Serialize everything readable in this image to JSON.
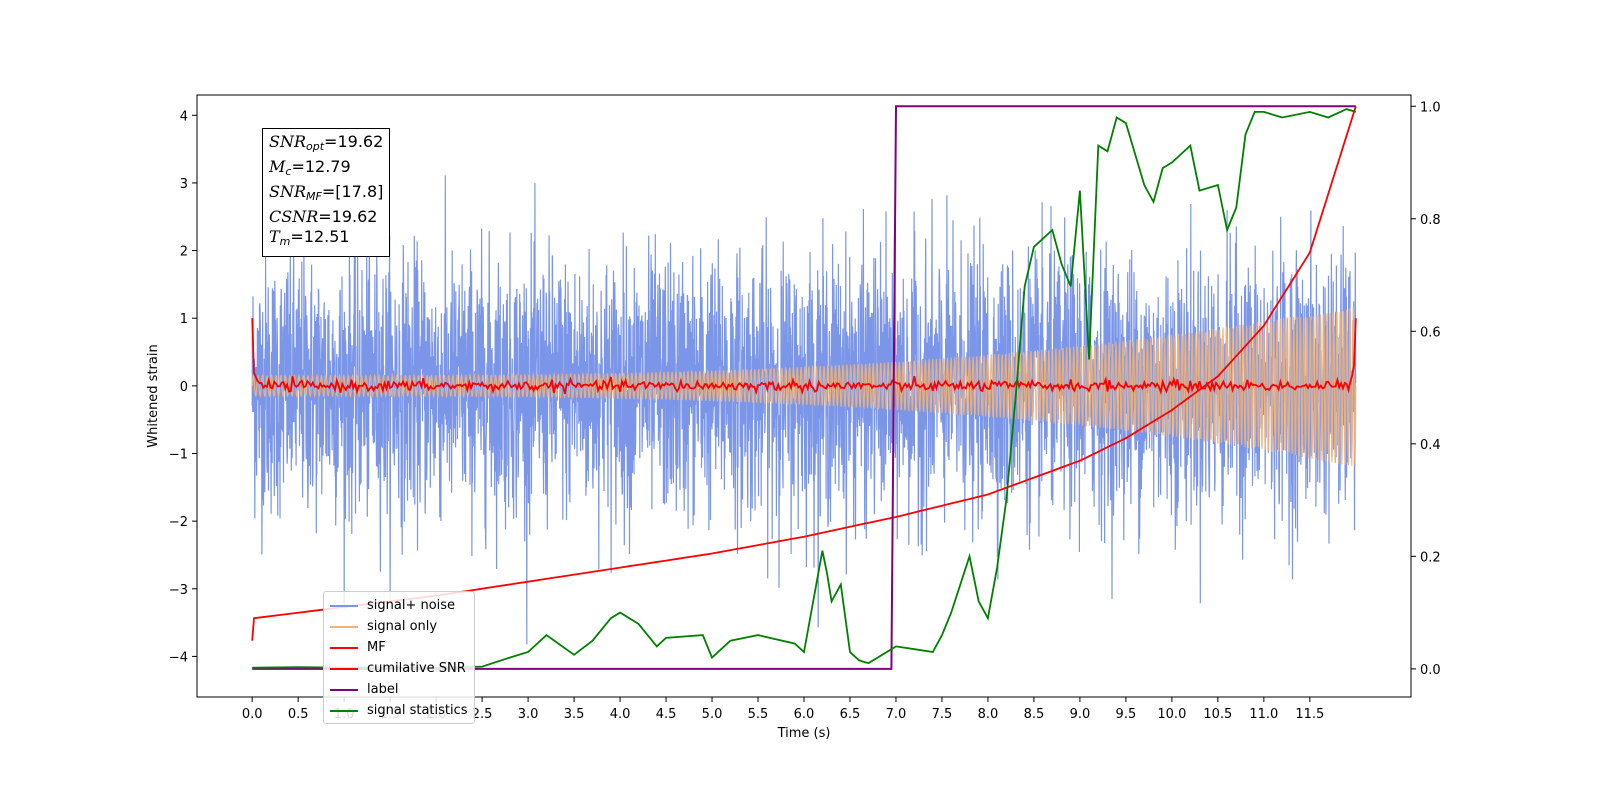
{
  "chart_data": {
    "type": "line",
    "xlabel": "Time (s)",
    "ylabel_left": "Whitened strain",
    "ylabel_right": "",
    "xlim": [
      -0.6,
      12.6
    ],
    "ylim_left": [
      -4.6,
      4.3
    ],
    "ylim_right": [
      -0.05,
      1.02
    ],
    "x_ticks": [
      "0.0",
      "0.5",
      "1.0",
      "1.5",
      "2.0",
      "2.5",
      "3.0",
      "3.5",
      "4.0",
      "4.5",
      "5.0",
      "5.5",
      "6.0",
      "6.5",
      "7.0",
      "7.5",
      "8.0",
      "8.5",
      "9.0",
      "9.5",
      "10.0",
      "10.5",
      "11.0",
      "11.5"
    ],
    "y_ticks_left": [
      "4",
      "3",
      "2",
      "1",
      "0",
      "−1",
      "−2",
      "−3",
      "−4"
    ],
    "y_ticks_right": [
      "1.0",
      "0.8",
      "0.6",
      "0.4",
      "0.2",
      "0.0"
    ],
    "annotation": [
      {
        "sym": "SNR",
        "sub": "opt",
        "value": "=19.62"
      },
      {
        "sym": "M",
        "sub": "c",
        "value": "=12.79"
      },
      {
        "sym": "SNR",
        "sub": "MF",
        "value": "=[17.8]"
      },
      {
        "sym": "CSNR",
        "sub": "",
        "value": "=19.62"
      },
      {
        "sym": "T",
        "sub": "m",
        "value": "=12.51"
      }
    ],
    "legend_placement": "lower-left",
    "series": [
      {
        "name": "signal+ noise",
        "color": "#7b96e8",
        "axis": "left",
        "kind": "noise",
        "std": 1.0,
        "peak_range": [
          -3.9,
          3.9
        ]
      },
      {
        "name": "signal only",
        "color": "#f2b27a",
        "axis": "left",
        "kind": "chirp",
        "amplitude_start": 0.15,
        "amplitude_end": 1.2,
        "t_start": 0.0,
        "t_end": 12.0
      },
      {
        "name": "MF",
        "color": "#ff0000",
        "axis": "left",
        "kind": "fluctuation",
        "start_value": 1.0,
        "end_value": 1.0,
        "std": 0.04
      },
      {
        "name": "cumilative SNR",
        "color": "#ff0000",
        "axis": "right",
        "x": [
          0.0,
          0.02,
          1.0,
          2.0,
          3.0,
          4.0,
          5.0,
          6.0,
          7.0,
          7.5,
          8.0,
          8.5,
          9.0,
          9.5,
          10.0,
          10.5,
          11.0,
          11.5,
          12.0
        ],
        "values": [
          0.05,
          0.09,
          0.11,
          0.13,
          0.155,
          0.18,
          0.205,
          0.235,
          0.27,
          0.29,
          0.31,
          0.34,
          0.37,
          0.41,
          0.46,
          0.52,
          0.61,
          0.74,
          1.0
        ]
      },
      {
        "name": "label",
        "color": "#800080",
        "axis": "right",
        "x": [
          0.0,
          6.95,
          7.0,
          12.0
        ],
        "values": [
          0.0,
          0.0,
          1.0,
          1.0
        ]
      },
      {
        "name": "signal statistics",
        "color": "#008000",
        "axis": "right",
        "x": [
          0.0,
          0.5,
          1.0,
          1.5,
          2.0,
          2.5,
          2.8,
          3.0,
          3.2,
          3.5,
          3.7,
          3.9,
          4.0,
          4.2,
          4.4,
          4.5,
          4.9,
          5.0,
          5.2,
          5.5,
          5.9,
          6.0,
          6.2,
          6.25,
          6.3,
          6.4,
          6.5,
          6.6,
          6.7,
          6.8,
          6.9,
          7.0,
          7.2,
          7.4,
          7.5,
          7.6,
          7.8,
          7.9,
          8.0,
          8.1,
          8.2,
          8.3,
          8.4,
          8.5,
          8.7,
          8.8,
          8.9,
          9.0,
          9.1,
          9.2,
          9.3,
          9.4,
          9.5,
          9.7,
          9.8,
          9.9,
          10.0,
          10.2,
          10.3,
          10.5,
          10.6,
          10.7,
          10.8,
          10.9,
          11.0,
          11.2,
          11.5,
          11.7,
          11.9,
          12.0
        ],
        "values": [
          0.002,
          0.003,
          0.002,
          0.003,
          0.002,
          0.004,
          0.02,
          0.03,
          0.06,
          0.025,
          0.05,
          0.09,
          0.1,
          0.08,
          0.04,
          0.055,
          0.06,
          0.02,
          0.05,
          0.06,
          0.045,
          0.03,
          0.21,
          0.17,
          0.12,
          0.15,
          0.03,
          0.015,
          0.01,
          0.02,
          0.03,
          0.04,
          0.035,
          0.03,
          0.06,
          0.1,
          0.2,
          0.12,
          0.09,
          0.18,
          0.3,
          0.48,
          0.68,
          0.75,
          0.78,
          0.72,
          0.68,
          0.85,
          0.55,
          0.93,
          0.92,
          0.98,
          0.97,
          0.86,
          0.83,
          0.89,
          0.9,
          0.93,
          0.85,
          0.86,
          0.78,
          0.82,
          0.95,
          0.99,
          0.99,
          0.98,
          0.99,
          0.98,
          0.995,
          0.99
        ]
      }
    ]
  }
}
